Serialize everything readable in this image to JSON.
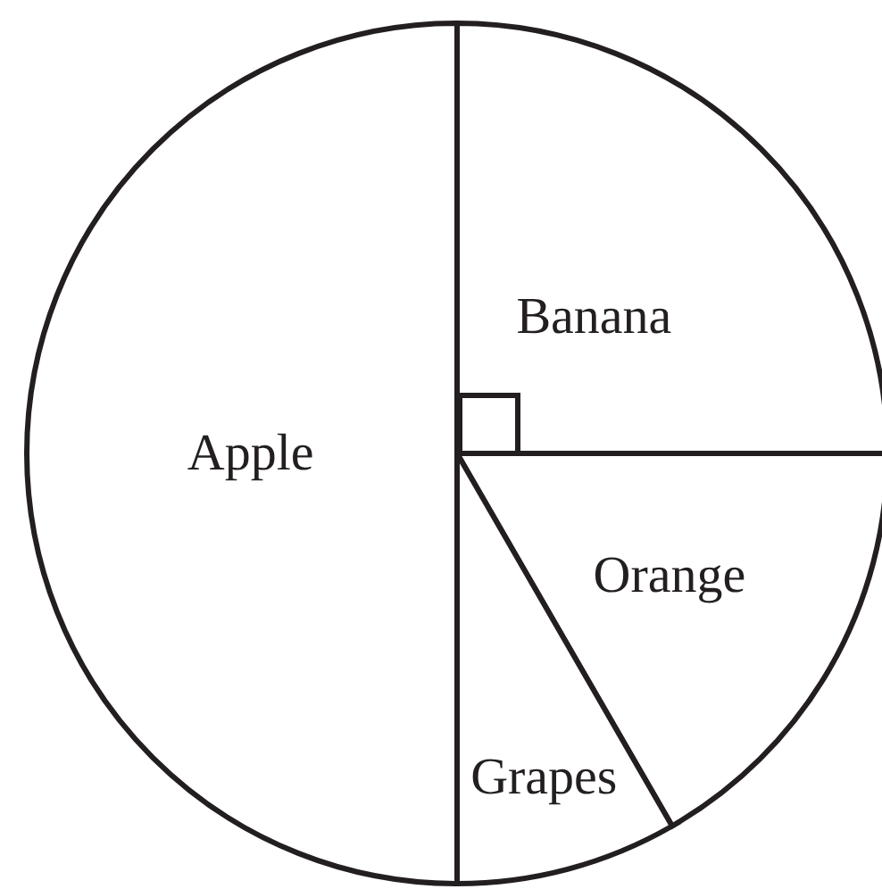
{
  "chart_data": {
    "type": "pie",
    "categories": [
      "Banana",
      "Orange",
      "Grapes",
      "Apple"
    ],
    "values": [
      25,
      16.67,
      8.33,
      50
    ],
    "colors": [
      "#ffffff",
      "#ffffff",
      "#ffffff",
      "#ffffff"
    ]
  }
}
